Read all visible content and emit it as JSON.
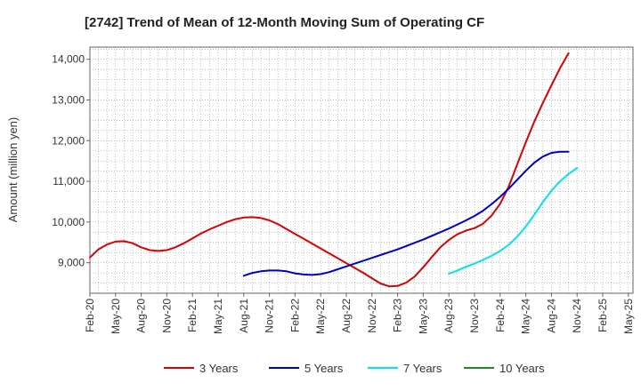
{
  "chart_data": {
    "type": "line",
    "title": "[2742]  Trend of Mean of 12-Month Moving Sum of Operating CF",
    "xlabel": "",
    "ylabel": "Amount (million yen)",
    "ylim": [
      8250,
      14300
    ],
    "yticks": [
      9000,
      10000,
      11000,
      12000,
      13000,
      14000
    ],
    "ytick_labels": [
      "9,000",
      "10,000",
      "11,000",
      "12,000",
      "13,000",
      "14,000"
    ],
    "xtick_labels": [
      "Feb-20",
      "May-20",
      "Aug-20",
      "Nov-20",
      "Feb-21",
      "May-21",
      "Aug-21",
      "Nov-21",
      "Feb-22",
      "May-22",
      "Aug-22",
      "Nov-22",
      "Feb-23",
      "May-23",
      "Aug-23",
      "Nov-23",
      "Feb-24",
      "May-24",
      "Aug-24",
      "Nov-24",
      "Feb-25",
      "May-25"
    ],
    "grid": true,
    "legend_position": "bottom",
    "series": [
      {
        "name": "3 Years",
        "color": "#dd0000",
        "start_index": 0,
        "values": [
          9130,
          9330,
          9450,
          9520,
          9530,
          9480,
          9380,
          9310,
          9290,
          9310,
          9380,
          9480,
          9600,
          9720,
          9820,
          9910,
          10000,
          10070,
          10110,
          10120,
          10100,
          10040,
          9950,
          9830,
          9710,
          9590,
          9470,
          9350,
          9230,
          9110,
          8990,
          8870,
          8750,
          8620,
          8490,
          8420,
          8430,
          8510,
          8660,
          8890,
          9140,
          9380,
          9560,
          9700,
          9790,
          9850,
          9960,
          10160,
          10450,
          10870,
          11420,
          11960,
          12470,
          12930,
          13360,
          13780,
          14150
        ]
      },
      {
        "name": "5 Years",
        "color": "#0000cc",
        "start_index": 18,
        "values": [
          8680,
          8750,
          8790,
          8810,
          8810,
          8790,
          8740,
          8710,
          8700,
          8720,
          8770,
          8840,
          8910,
          8980,
          9050,
          9120,
          9190,
          9260,
          9330,
          9410,
          9490,
          9570,
          9660,
          9750,
          9840,
          9940,
          10040,
          10150,
          10280,
          10440,
          10620,
          10820,
          11040,
          11260,
          11460,
          11610,
          11700,
          11730,
          11730
        ]
      },
      {
        "name": "7 Years",
        "color": "#00e5ee",
        "start_index": 42,
        "values": [
          8730,
          8810,
          8900,
          8980,
          9070,
          9170,
          9290,
          9440,
          9640,
          9890,
          10180,
          10490,
          10770,
          11000,
          11180,
          11330
        ]
      },
      {
        "name": "10 Years",
        "color": "#228b22",
        "start_index": 0,
        "values": []
      }
    ]
  }
}
